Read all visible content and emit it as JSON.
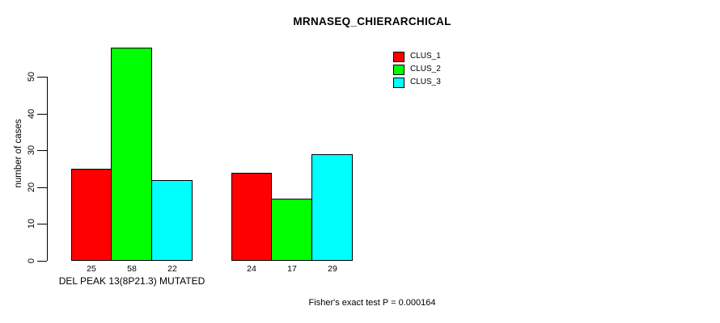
{
  "chart_data": {
    "type": "bar",
    "title": "MRNASEQ_CHIERARCHICAL",
    "ylabel": "number of cases",
    "xlabel": "",
    "groups": [
      {
        "label": "DEL PEAK 13(8P21.3) MUTATED",
        "values": [
          25,
          58,
          22
        ]
      },
      {
        "label": "",
        "values": [
          24,
          17,
          29
        ]
      }
    ],
    "series": [
      {
        "name": "CLUS_1",
        "color": "#ff0000"
      },
      {
        "name": "CLUS_2",
        "color": "#00ff00"
      },
      {
        "name": "CLUS_3",
        "color": "#00ffff"
      }
    ],
    "yticks": [
      0,
      10,
      20,
      30,
      40,
      50
    ],
    "ylim": [
      0,
      58
    ],
    "grid": false,
    "legend_position": "top-right",
    "bar_border_color": "#000000",
    "show_value_labels": true
  },
  "footer": {
    "note": "Fisher's exact test P = 0.000164"
  }
}
